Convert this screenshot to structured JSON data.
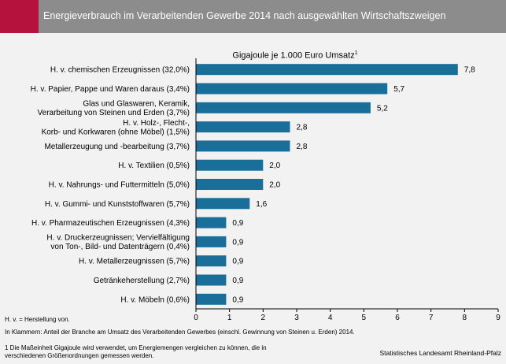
{
  "header": {
    "title": "Energieverbrauch im Verarbeitenden Gewerbe 2014 nach ausgewählten Wirtschaftszweigen",
    "accent_color": "#b5123d",
    "bar_color": "#8c8c8c"
  },
  "chart_data": {
    "type": "bar",
    "orientation": "horizontal",
    "unit_label": "Gigajoule je 1.000 Euro Umsatz",
    "unit_footnote_mark": "1",
    "bar_color": "#1a6e9a",
    "categories": [
      [
        "H. v. chemischen Erzeugnissen (32,0%)"
      ],
      [
        "H. v. Papier, Pappe und Waren daraus (3,4%)"
      ],
      [
        "Glas und Glaswaren, Keramik,",
        "Verarbeitung von Steinen und Erden (3,7%)"
      ],
      [
        "H. v. Holz-, Flecht-,",
        "Korb- und Korkwaren (ohne Möbel) (1,5%)"
      ],
      [
        "Metallerzeugung und -bearbeitung (3,7%)"
      ],
      [
        "H. v. Textilien (0,5%)"
      ],
      [
        "H. v. Nahrungs- und Futtermitteln (5,0%)"
      ],
      [
        "H. v. Gummi- und Kunststoffwaren (5,7%)"
      ],
      [
        "H. v. Pharmazeutischen Erzeugnissen (4,3%)"
      ],
      [
        "H. v. Druckerzeugnissen; Vervielfältigung",
        "von Ton-, Bild- und Datenträgern (0,4%)"
      ],
      [
        "H. v. Metallerzeugnissen (5,7%)"
      ],
      [
        "Getränkeherstellung (2,7%)"
      ],
      [
        "H. v. Möbeln (0,6%)"
      ]
    ],
    "values": [
      7.8,
      5.7,
      5.2,
      2.8,
      2.8,
      2.0,
      2.0,
      1.6,
      0.9,
      0.9,
      0.9,
      0.9,
      0.9
    ],
    "value_labels": [
      "7,8",
      "5,7",
      "5,2",
      "2,8",
      "2,8",
      "2,0",
      "2,0",
      "1,6",
      "0,9",
      "0,9",
      "0,9",
      "0,9",
      "0,9"
    ],
    "xlim": [
      0,
      9
    ],
    "xticks": [
      "0",
      "1",
      "2",
      "3",
      "4",
      "5",
      "6",
      "7",
      "8",
      "9"
    ],
    "grid": false
  },
  "notes": {
    "abbrev": "H. v. = Herstellung von.",
    "brackets": "In Klammern: Anteil der Branche am Umsatz des Verarbeitenden Gewerbes (einschl. Gewinnung von Steinen u. Erden) 2014.",
    "footnote_line1": "1 Die Maßeinheit Gigajoule wird verwendet, um Energiemengen vergleichen zu können, die in",
    "footnote_line2": "verschiedenen Größenordnungen gemessen werden.",
    "source": "Statistisches Landesamt Rheinland-Pfalz"
  }
}
